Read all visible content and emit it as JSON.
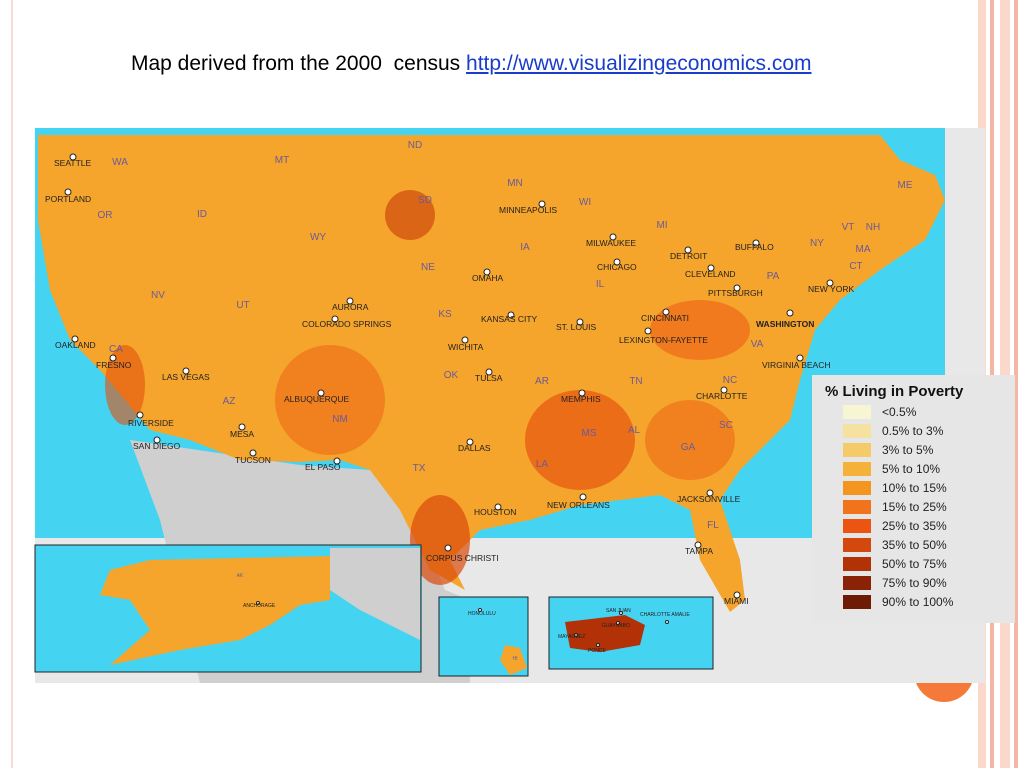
{
  "header": {
    "title": "Map derived from the 2000  census",
    "link": "http://www.visualizingeconomics.com"
  },
  "legend": {
    "title": "% Living in Poverty",
    "items": [
      {
        "label": "<0.5%",
        "color": "#f8f5d2"
      },
      {
        "label": "0.5% to 3%",
        "color": "#f6e2a0"
      },
      {
        "label": "3% to 5%",
        "color": "#f5cb6a"
      },
      {
        "label": "5% to 10%",
        "color": "#f5b23b"
      },
      {
        "label": "10% to 15%",
        "color": "#f4951f"
      },
      {
        "label": "15% to 25%",
        "color": "#f1731b"
      },
      {
        "label": "25% to 35%",
        "color": "#ec5412"
      },
      {
        "label": "35% to 50%",
        "color": "#d3490d"
      },
      {
        "label": "50% to 75%",
        "color": "#b23107"
      },
      {
        "label": "75% to 90%",
        "color": "#8a2305"
      },
      {
        "label": "90% to 100%",
        "color": "#6d1b04"
      }
    ]
  },
  "map": {
    "states": [
      "WA",
      "MT",
      "ND",
      "MN",
      "OR",
      "ID",
      "SD",
      "WI",
      "MI",
      "ME",
      "WY",
      "NY",
      "VT",
      "NH",
      "MA",
      "CT",
      "IA",
      "NE",
      "PA",
      "NV",
      "UT",
      "IL",
      "KS",
      "CA",
      "VA",
      "AZ",
      "NM",
      "OK",
      "AR",
      "TN",
      "NC",
      "SC",
      "MS",
      "AL",
      "GA",
      "TX",
      "LA",
      "FL",
      "AK",
      "HI"
    ],
    "cities": [
      "SEATTLE",
      "PORTLAND",
      "MINNEAPOLIS",
      "MILWAUKEE",
      "DETROIT",
      "BUFFALO",
      "CHICAGO",
      "CLEVELAND",
      "OMAHA",
      "PITTSBURGH",
      "NEW YORK",
      "AURORA",
      "COLORADO SPRINGS",
      "KANSAS CITY",
      "ST. LOUIS",
      "CINCINNATI",
      "WASHINGTON",
      "OAKLAND",
      "WICHITA",
      "LEXINGTON-FAYETTE",
      "FRESNO",
      "LAS VEGAS",
      "VIRGINIA BEACH",
      "TULSA",
      "MEMPHIS",
      "CHARLOTTE",
      "ALBUQUERQUE",
      "RIVERSIDE",
      "SAN DIEGO",
      "MESA",
      "DALLAS",
      "TUCSON",
      "EL PASO",
      "HOUSTON",
      "NEW ORLEANS",
      "JACKSONVILLE",
      "TAMPA",
      "CORPUS CHRISTI",
      "MIAMI",
      "ANCHORAGE",
      "HONOLULU",
      "SAN JUAN",
      "CHARLOTTE AMALIE",
      "GUAYNABO",
      "MAYAGUEZ",
      "PONCE"
    ]
  }
}
